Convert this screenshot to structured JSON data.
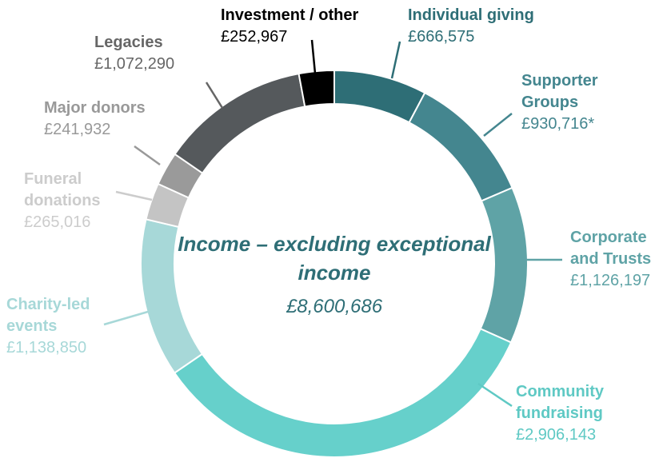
{
  "chart_data": {
    "type": "donut",
    "title": "Income – excluding exceptional income",
    "total": 8600686,
    "total_label": "£8,600,686",
    "categories": [
      "Individual giving",
      "Supporter Groups",
      "Corporate and Trusts",
      "Community fundraising",
      "Charity-led events",
      "Funeral donations",
      "Major donors",
      "Legacies",
      "Investment / other"
    ],
    "values": [
      666575,
      930716,
      1126197,
      2906143,
      1138850,
      265016,
      241932,
      1072290,
      252967
    ],
    "value_labels": [
      "£666,575",
      "£930,716*",
      "£1,126,197",
      "£2,906,143",
      "£1,138,850",
      "£265,016",
      "£241,932",
      "£1,072,290",
      "£252,967"
    ],
    "colors": [
      "#2e6e76",
      "#44868f",
      "#5fa3a6",
      "#66d0cb",
      "#a7d8d8",
      "#c4c4c4",
      "#9a9a9a",
      "#55595c",
      "#000000"
    ]
  }
}
